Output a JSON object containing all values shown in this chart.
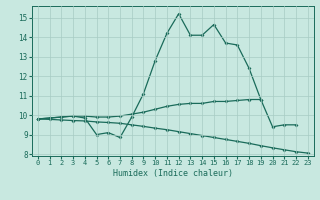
{
  "xlabel": "Humidex (Indice chaleur)",
  "xlim": [
    -0.5,
    23.5
  ],
  "ylim": [
    7.9,
    15.6
  ],
  "yticks": [
    8,
    9,
    10,
    11,
    12,
    13,
    14,
    15
  ],
  "xticks": [
    0,
    1,
    2,
    3,
    4,
    5,
    6,
    7,
    8,
    9,
    10,
    11,
    12,
    13,
    14,
    15,
    16,
    17,
    18,
    19,
    20,
    21,
    22,
    23
  ],
  "bg_color": "#c8e8e0",
  "line_color": "#1a6b5a",
  "grid_color": "#a8ccc4",
  "line1_y": [
    9.8,
    9.85,
    9.9,
    9.95,
    9.85,
    9.0,
    9.1,
    8.85,
    9.9,
    11.1,
    12.8,
    14.2,
    15.2,
    14.1,
    14.1,
    14.65,
    13.7,
    13.6,
    12.4,
    10.8,
    null,
    null,
    null,
    null
  ],
  "line2_y": [
    9.8,
    9.85,
    9.9,
    9.95,
    9.95,
    9.9,
    9.9,
    9.95,
    10.05,
    10.15,
    10.3,
    10.45,
    10.55,
    10.6,
    10.6,
    10.7,
    10.7,
    10.75,
    10.8,
    10.8,
    9.4,
    9.5,
    9.5,
    null
  ],
  "line3_y": [
    9.8,
    9.78,
    9.75,
    9.72,
    9.7,
    9.65,
    9.62,
    9.58,
    9.5,
    9.42,
    9.33,
    9.25,
    9.15,
    9.05,
    8.95,
    8.85,
    8.75,
    8.65,
    8.55,
    8.43,
    8.32,
    8.22,
    8.12,
    8.05
  ]
}
